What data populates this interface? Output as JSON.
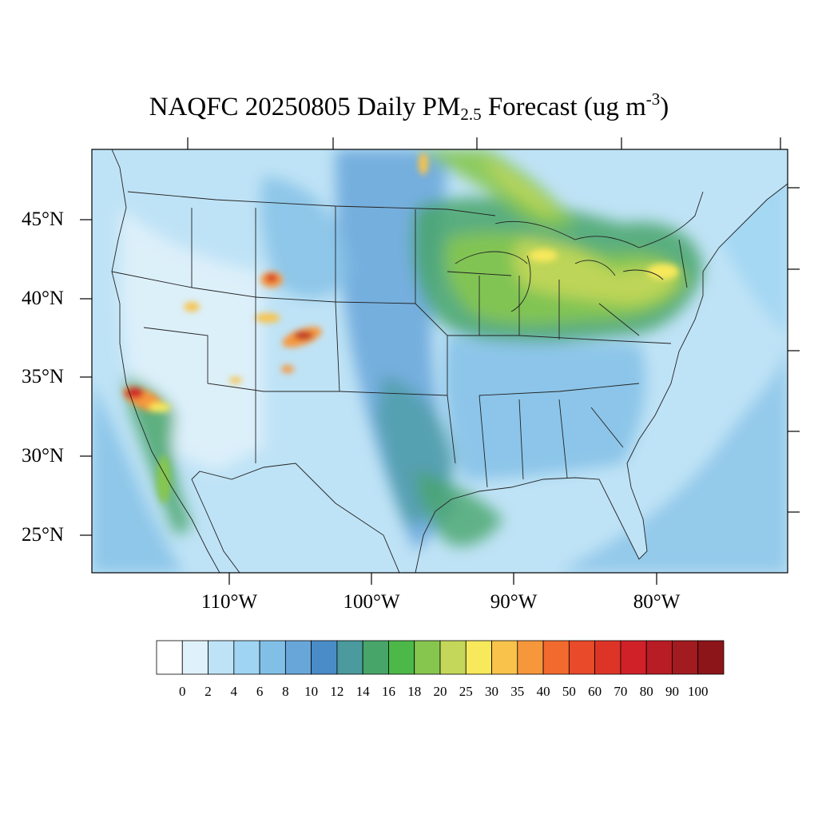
{
  "title": {
    "main": "NAQFC 20250805 Daily PM",
    "subscript": "2.5",
    "after_sub": " Forecast (ug m",
    "superscript": "-3",
    "close": ")"
  },
  "map": {
    "lat_labels": [
      "45°N",
      "40°N",
      "35°N",
      "30°N",
      "25°N"
    ],
    "lon_labels": [
      "110°W",
      "100°W",
      "90°W",
      "80°W"
    ],
    "colors": {
      "water": "#bfe3f6",
      "border": "#222222"
    }
  },
  "colorbar": {
    "levels": [
      "0",
      "2",
      "4",
      "6",
      "8",
      "10",
      "12",
      "14",
      "16",
      "18",
      "20",
      "25",
      "30",
      "35",
      "40",
      "50",
      "60",
      "70",
      "80",
      "90",
      "100"
    ],
    "colors": [
      "#ffffff",
      "#dff1fb",
      "#bfe3f6",
      "#9fd4f2",
      "#82bfe6",
      "#68a6d9",
      "#4a8cc8",
      "#4a9a9e",
      "#48a56a",
      "#4cb848",
      "#86c64f",
      "#c4d75a",
      "#f8e85b",
      "#f8c24b",
      "#f6973c",
      "#f26a2e",
      "#e84a2a",
      "#de3427",
      "#d02028",
      "#b81c24",
      "#a11b20",
      "#8c1519"
    ]
  }
}
